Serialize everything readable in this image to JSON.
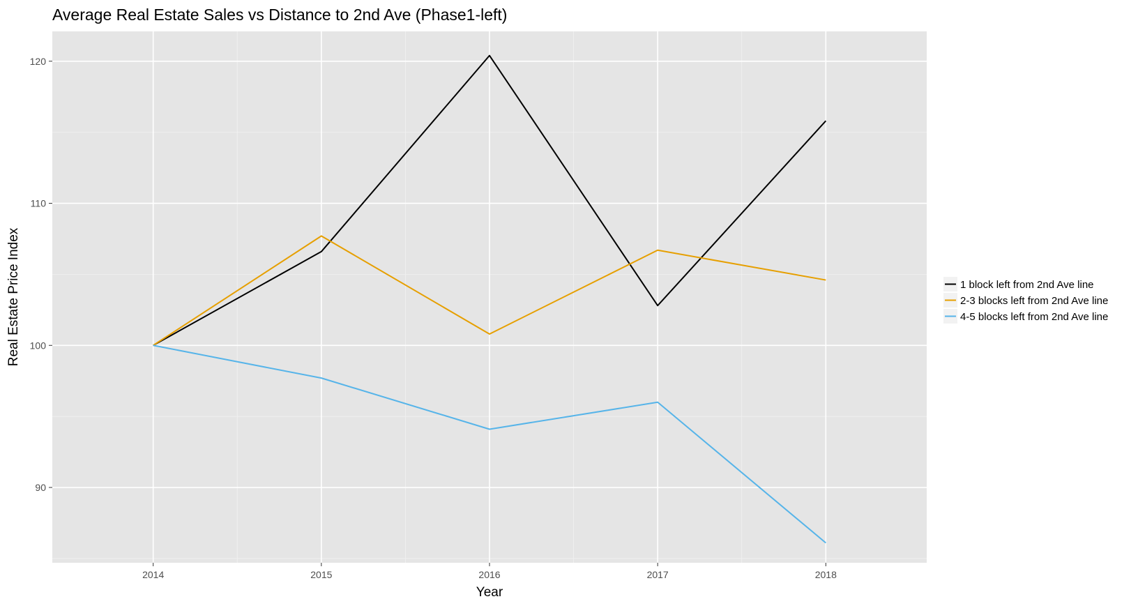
{
  "chart_data": {
    "type": "line",
    "title": "Average Real Estate Sales vs Distance to 2nd Ave (Phase1-left)",
    "xlabel": "Year",
    "ylabel": "Real Estate Price Index",
    "x": [
      2014,
      2015,
      2016,
      2017,
      2018
    ],
    "xlim": [
      2013.4,
      2018.6
    ],
    "ylim": [
      84.7,
      122.1
    ],
    "yticks": [
      90,
      100,
      110,
      120
    ],
    "xticks": [
      2014,
      2015,
      2016,
      2017,
      2018
    ],
    "grid": true,
    "legend_position": "right",
    "background": "#e5e5e5",
    "series": [
      {
        "name": "1 block left from 2nd Ave line",
        "color": "#000000",
        "values": [
          100.0,
          106.6,
          120.4,
          102.8,
          115.8
        ]
      },
      {
        "name": "2-3 blocks left from 2nd Ave line",
        "color": "#e69f00",
        "values": [
          100.0,
          107.7,
          100.8,
          106.7,
          104.6
        ]
      },
      {
        "name": "4-5 blocks left from 2nd Ave line",
        "color": "#56b4e9",
        "values": [
          100.0,
          97.7,
          94.1,
          96.0,
          86.1
        ]
      }
    ]
  }
}
